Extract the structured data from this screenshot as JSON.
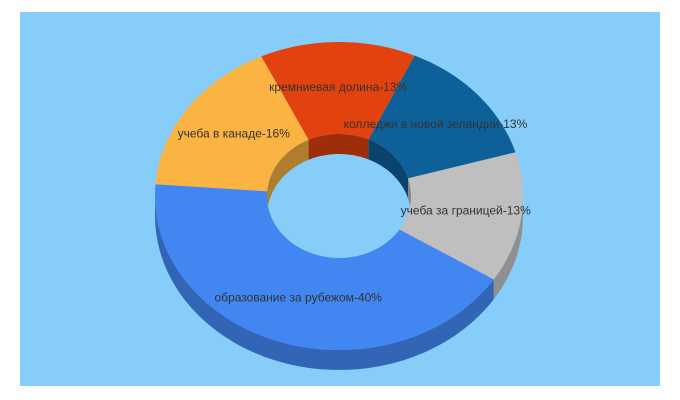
{
  "chart_data": {
    "type": "donut3d",
    "values": [
      13,
      13,
      13,
      40,
      16
    ],
    "value_labels": [
      "кремниевая долина-13%",
      "колледжи в новой зеландии-13%",
      "учеба за границей-13%",
      "образование за рубежом-40%",
      "учеба в канаде-16%"
    ],
    "colors": [
      "#e2420d",
      "#0e6099",
      "#bfbfbf",
      "#4286f2",
      "#fbb341"
    ],
    "background": "#87cdfa"
  }
}
